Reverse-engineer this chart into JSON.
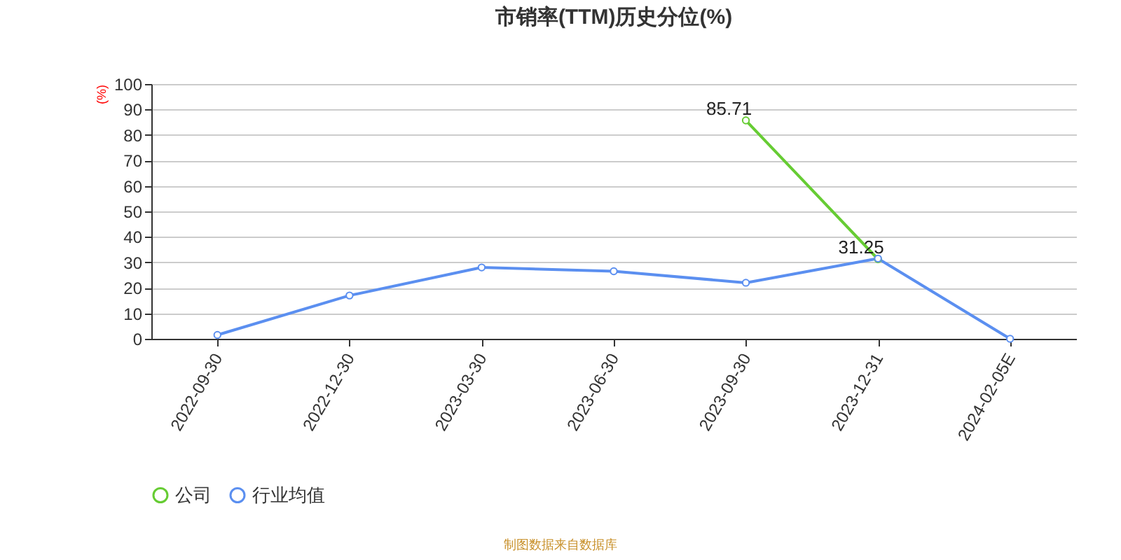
{
  "chart_data": {
    "type": "line",
    "title": "市销率(TTM)历史分位(%)",
    "ylabel": "(%)",
    "categories": [
      "2022-09-30",
      "2022-12-30",
      "2023-03-30",
      "2023-06-30",
      "2023-09-30",
      "2023-12-31",
      "2024-02-05E"
    ],
    "series": [
      {
        "name": "公司",
        "color": "#66cc33",
        "values": [
          null,
          null,
          null,
          null,
          85.71,
          31.25,
          null
        ],
        "value_labels": [
          null,
          null,
          null,
          null,
          "85.71",
          "31.25",
          null
        ]
      },
      {
        "name": "行业均值",
        "color": "#5b8ff0",
        "values": [
          1.5,
          17,
          28,
          26.5,
          22,
          31.5,
          0
        ]
      }
    ],
    "ylim": [
      0,
      100
    ],
    "yticks": [
      0,
      10,
      20,
      30,
      40,
      50,
      60,
      70,
      80,
      90,
      100
    ],
    "grid": "y",
    "legend": "bottom",
    "marker": "circle",
    "line_style": "solid",
    "annotations": [
      "制图数据来自数据库"
    ]
  }
}
